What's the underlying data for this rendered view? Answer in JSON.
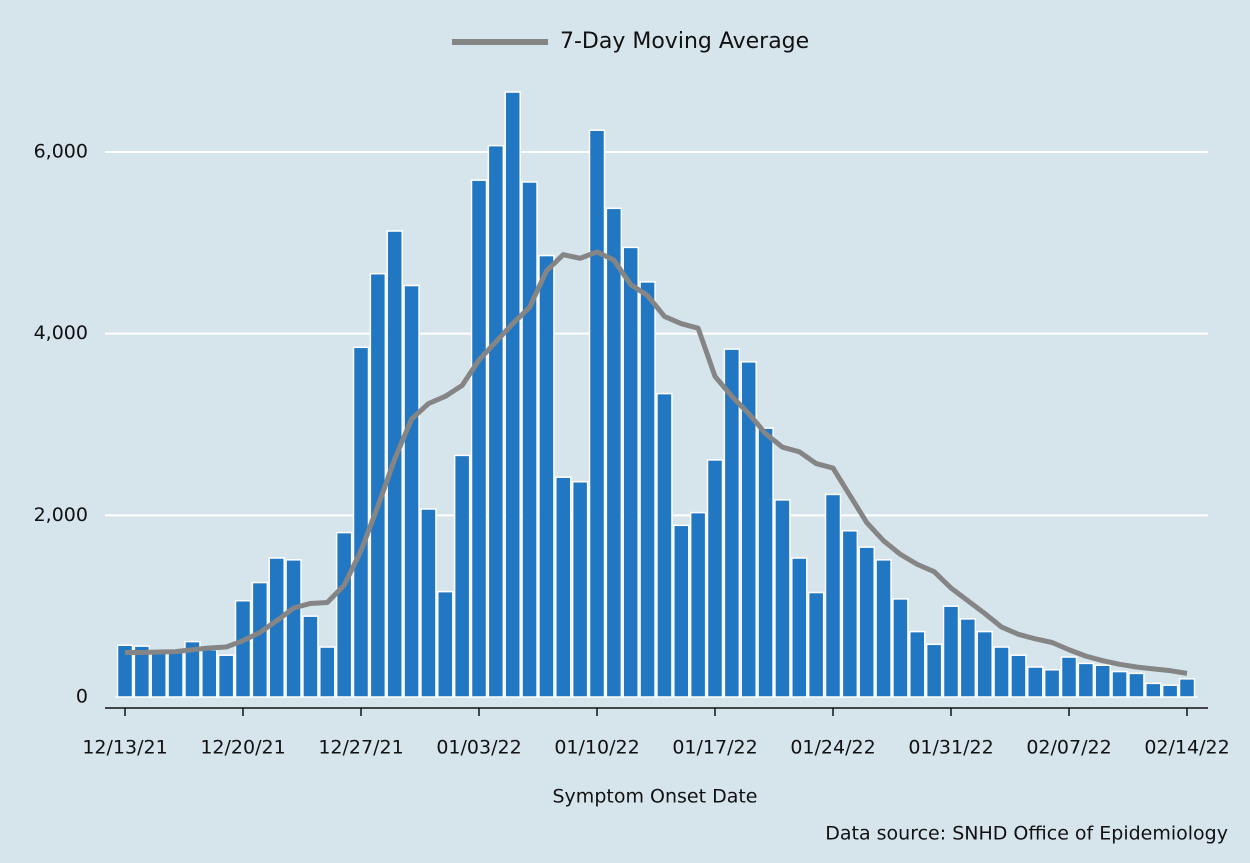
{
  "chart_data": {
    "type": "bar-line",
    "x_label": "Symptom Onset Date",
    "source": "Data source: SNHD Office of Epidemiology",
    "categories": [
      "12/13/21",
      null,
      null,
      null,
      null,
      null,
      null,
      "12/20/21",
      null,
      null,
      null,
      null,
      null,
      null,
      "12/27/21",
      null,
      null,
      null,
      null,
      null,
      null,
      "01/03/22",
      null,
      null,
      null,
      null,
      null,
      null,
      "01/10/22",
      null,
      null,
      null,
      null,
      null,
      null,
      "01/17/22",
      null,
      null,
      null,
      null,
      null,
      null,
      "01/24/22",
      null,
      null,
      null,
      null,
      null,
      null,
      "01/31/22",
      null,
      null,
      null,
      null,
      null,
      null,
      "02/07/22",
      null,
      null,
      null,
      null,
      null,
      null,
      "02/14/22"
    ],
    "series": [
      {
        "type": "bar",
        "color": "#2177c2",
        "values": [
          570,
          560,
          510,
          520,
          610,
          520,
          460,
          1060,
          1260,
          1530,
          1510,
          890,
          550,
          1810,
          3850,
          4660,
          5130,
          4530,
          2070,
          1160,
          2660,
          5690,
          6070,
          6660,
          5670,
          4860,
          2420,
          2370,
          6240,
          5380,
          4950,
          4570,
          3340,
          1890,
          2030,
          2610,
          3830,
          3690,
          2960,
          2170,
          1530,
          1150,
          2230,
          1830,
          1650,
          1510,
          1080,
          720,
          580,
          1000,
          860,
          720,
          550,
          460,
          330,
          300,
          440,
          370,
          350,
          280,
          260,
          150,
          130,
          200
        ]
      },
      {
        "type": "line",
        "name": "7-Day Moving Average",
        "color": "#858585",
        "values": [
          490,
          490,
          495,
          500,
          520,
          540,
          550,
          620,
          710,
          840,
          980,
          1030,
          1040,
          1230,
          1610,
          2100,
          2620,
          3060,
          3230,
          3310,
          3430,
          3710,
          3910,
          4110,
          4290,
          4690,
          4870,
          4830,
          4900,
          4810,
          4540,
          4420,
          4190,
          4110,
          4060,
          3530,
          3310,
          3120,
          2900,
          2750,
          2700,
          2570,
          2520,
          2220,
          1920,
          1720,
          1570,
          1460,
          1380,
          1200,
          1060,
          920,
          770,
          690,
          640,
          600,
          520,
          450,
          400,
          360,
          330,
          310,
          290,
          260
        ]
      }
    ],
    "ylim": [
      0,
      7000
    ],
    "yticks": [
      0,
      {
        "value": 2000,
        "label": "2,000"
      },
      {
        "value": 4000,
        "label": "4,000"
      },
      {
        "value": 6000,
        "label": "6,000"
      }
    ],
    "grid": true
  }
}
